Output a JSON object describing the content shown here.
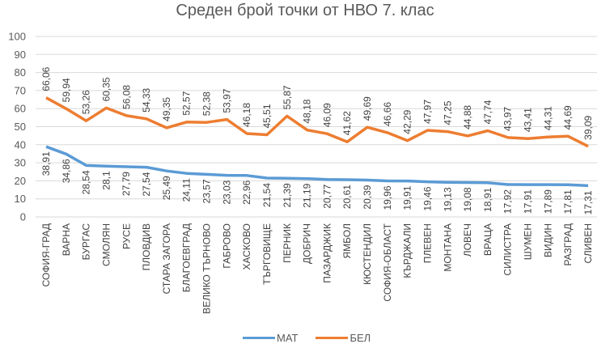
{
  "chart_data": {
    "type": "line",
    "title": "Среден брой точки от НВО 7. клас",
    "xlabel": "",
    "ylabel": "",
    "ylim": [
      0,
      100
    ],
    "yticks": [
      0,
      10,
      20,
      30,
      40,
      50,
      60,
      70,
      80,
      90,
      100
    ],
    "grid": true,
    "legend_position": "bottom",
    "categories": [
      "СОФИЯ-ГРАД",
      "ВАРНА",
      "БУРГАС",
      "СМОЛЯН",
      "РУСЕ",
      "ПЛОВДИВ",
      "СТАРА ЗАГОРА",
      "БЛАГОЕВГРАД",
      "ВЕЛИКО ТЪРНОВО",
      "ГАБРОВО",
      "ХАСКОВО",
      "ТЪРГОВИЩЕ",
      "ПЕРНИК",
      "ДОБРИЧ",
      "ПАЗАРДЖИК",
      "ЯМБОЛ",
      "КЮСТЕНДИЛ",
      "СОФИЯ-ОБЛАСТ",
      "КЪРДЖАЛИ",
      "ПЛЕВЕН",
      "МОНТАНА",
      "ЛОВЕЧ",
      "ВРАЦА",
      "СИЛИСТРА",
      "ШУМЕН",
      "ВИДИН",
      "РАЗГРАД",
      "СЛИВЕН"
    ],
    "series": [
      {
        "name": "МАТ",
        "color": "#5B9BD5",
        "values": [
          38.91,
          34.86,
          28.54,
          28.1,
          27.79,
          27.54,
          25.49,
          24.11,
          23.57,
          23.03,
          22.96,
          21.54,
          21.39,
          21.19,
          20.77,
          20.61,
          20.39,
          19.96,
          19.91,
          19.46,
          19.13,
          19.08,
          18.91,
          17.92,
          17.91,
          17.89,
          17.81,
          17.31
        ],
        "labels": [
          "38,91",
          "34,86",
          "28,54",
          "28,1",
          "27,79",
          "27,54",
          "25,49",
          "24,11",
          "23,57",
          "23,03",
          "22,96",
          "21,54",
          "21,39",
          "21,19",
          "20,77",
          "20,61",
          "20,39",
          "19,96",
          "19,91",
          "19,46",
          "19,13",
          "19,08",
          "18,91",
          "17,92",
          "17,91",
          "17,89",
          "17,81",
          "17,31"
        ]
      },
      {
        "name": "БЕЛ",
        "color": "#ED7D31",
        "values": [
          66.06,
          59.94,
          53.26,
          60.35,
          56.08,
          54.33,
          49.35,
          52.57,
          52.38,
          53.97,
          46.18,
          45.51,
          55.87,
          48.18,
          46.09,
          41.62,
          49.69,
          46.66,
          42.29,
          47.97,
          47.25,
          44.88,
          47.74,
          43.97,
          43.41,
          44.31,
          44.69,
          39.09
        ],
        "labels": [
          "66,06",
          "59,94",
          "53,26",
          "60,35",
          "56,08",
          "54,33",
          "49,35",
          "52,57",
          "52,38",
          "53,97",
          "46,18",
          "45,51",
          "55,87",
          "48,18",
          "46,09",
          "41,62",
          "49,69",
          "46,66",
          "42,29",
          "47,97",
          "47,25",
          "44,88",
          "47,74",
          "43,97",
          "43,41",
          "44,31",
          "44,69",
          "39,09"
        ]
      }
    ]
  },
  "legend": {
    "items": [
      {
        "label": "МАТ",
        "color": "#5B9BD5"
      },
      {
        "label": "БЕЛ",
        "color": "#ED7D31"
      }
    ]
  }
}
